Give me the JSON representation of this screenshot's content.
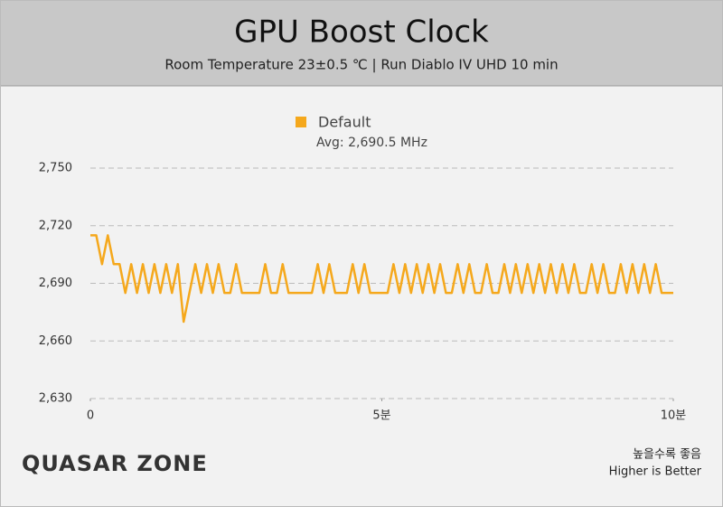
{
  "chart_data": {
    "type": "line",
    "title": "GPU Boost Clock",
    "subtitle": "Room Temperature 23±0.5 ℃  |  Run Diablo IV UHD 10 min",
    "annotation": "Avg: 2,690.5 MHz",
    "logo": "QUASAR ZONE",
    "footer": [
      "높을수록 좋음",
      "Higher is Better"
    ],
    "xlim": [
      0,
      10
    ],
    "xticks": [
      0,
      {
        "value": 5,
        "label": "5분"
      },
      {
        "value": 10,
        "label": "10분"
      }
    ],
    "ylim": [
      2630,
      2750
    ],
    "yticks": [
      {
        "value": 2630,
        "label": "2,630"
      },
      {
        "value": 2660,
        "label": "2,660"
      },
      {
        "value": 2690,
        "label": "2,690"
      },
      {
        "value": 2720,
        "label": "2,720"
      },
      {
        "value": 2750,
        "label": "2,750"
      }
    ],
    "grid": true,
    "legend": "top",
    "x": [
      0,
      0.1,
      0.2,
      0.3,
      0.4,
      0.5,
      0.6,
      0.7,
      0.8,
      0.9,
      1,
      1.1,
      1.2,
      1.3,
      1.4,
      1.5,
      1.6,
      1.7,
      1.8,
      1.9,
      2,
      2.1,
      2.2,
      2.3,
      2.4,
      2.5,
      2.6,
      2.7,
      2.8,
      2.9,
      3,
      3.1,
      3.2,
      3.3,
      3.4,
      3.5,
      3.6,
      3.7,
      3.8,
      3.9,
      4,
      4.1,
      4.2,
      4.3,
      4.4,
      4.5,
      4.6,
      4.7,
      4.8,
      4.9,
      5,
      5.1,
      5.2,
      5.3,
      5.4,
      5.5,
      5.6,
      5.7,
      5.8,
      5.9,
      6,
      6.1,
      6.2,
      6.3,
      6.4,
      6.5,
      6.6,
      6.7,
      6.8,
      6.9,
      7,
      7.1,
      7.2,
      7.3,
      7.4,
      7.5,
      7.6,
      7.7,
      7.8,
      7.9,
      8,
      8.1,
      8.2,
      8.3,
      8.4,
      8.5,
      8.6,
      8.7,
      8.8,
      8.9,
      9,
      9.1,
      9.2,
      9.3,
      9.4,
      9.5,
      9.6,
      9.7,
      9.8,
      9.9,
      10
    ],
    "series": [
      {
        "name": "Default",
        "color": "#f5a81c",
        "values": [
          2715,
          2715,
          2700,
          2715,
          2700,
          2700,
          2685,
          2700,
          2685,
          2700,
          2685,
          2700,
          2685,
          2700,
          2685,
          2700,
          2670,
          2685,
          2700,
          2685,
          2700,
          2685,
          2700,
          2685,
          2685,
          2700,
          2685,
          2685,
          2685,
          2685,
          2700,
          2685,
          2685,
          2700,
          2685,
          2685,
          2685,
          2685,
          2685,
          2700,
          2685,
          2700,
          2685,
          2685,
          2685,
          2700,
          2685,
          2700,
          2685,
          2685,
          2685,
          2685,
          2700,
          2685,
          2700,
          2685,
          2700,
          2685,
          2700,
          2685,
          2700,
          2685,
          2685,
          2700,
          2685,
          2700,
          2685,
          2685,
          2700,
          2685,
          2685,
          2700,
          2685,
          2700,
          2685,
          2700,
          2685,
          2700,
          2685,
          2700,
          2685,
          2700,
          2685,
          2700,
          2685,
          2685,
          2700,
          2685,
          2700,
          2685,
          2685,
          2700,
          2685,
          2700,
          2685,
          2700,
          2685,
          2700,
          2685,
          2685,
          2685
        ]
      }
    ]
  }
}
